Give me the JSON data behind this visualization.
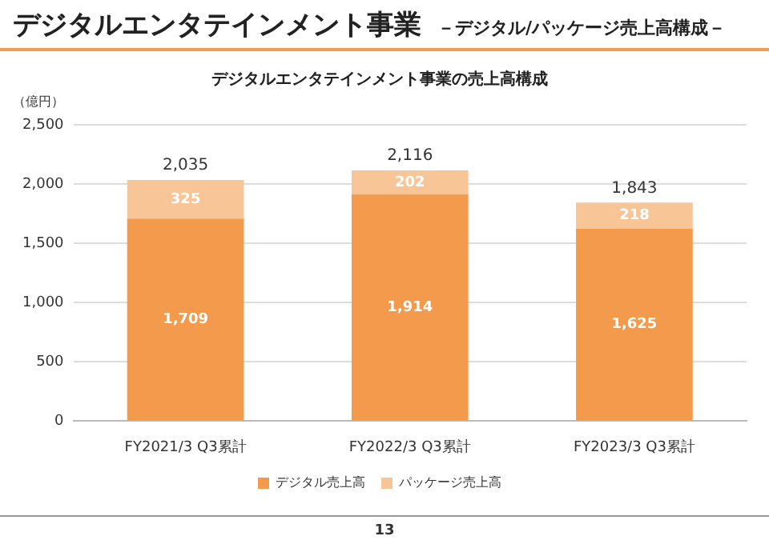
{
  "chart_data": {
    "type": "bar",
    "title": "デジタルエンタテインメント事業の売上高構成",
    "subtitle": "－デジタル/パッケージ売上高構成－",
    "ylabel": "（億円）",
    "annotations": [
      "デジタルエンタテインメント事業",
      "13"
    ],
    "categories": [
      "FY2021/3 Q3累計",
      "FY2022/3 Q3累計",
      "FY2023/3 Q3累計"
    ],
    "series": [
      {
        "name": "デジタル売上高",
        "color": "#f39a4c",
        "values": [
          1709,
          1914,
          1625
        ],
        "value_labels": [
          "1,709",
          "1,914",
          "1,625"
        ]
      },
      {
        "name": "パッケージ売上高",
        "color": "#f8c597",
        "values": [
          325,
          202,
          218
        ],
        "value_labels": [
          "325",
          "202",
          "218"
        ]
      }
    ],
    "stacked": true,
    "totals": [
      "2,035",
      "2,116",
      "1,843"
    ],
    "ylim": [
      0,
      2500
    ],
    "yticks": [
      0,
      {
        "value": 500,
        "label": "500"
      },
      {
        "value": 1000,
        "label": "1,000"
      },
      {
        "value": 1500,
        "label": "1,500"
      },
      {
        "value": 2000,
        "label": "2,000"
      },
      {
        "value": 2500,
        "label": "2,500"
      }
    ],
    "grid": "y",
    "legend": "bottom"
  }
}
